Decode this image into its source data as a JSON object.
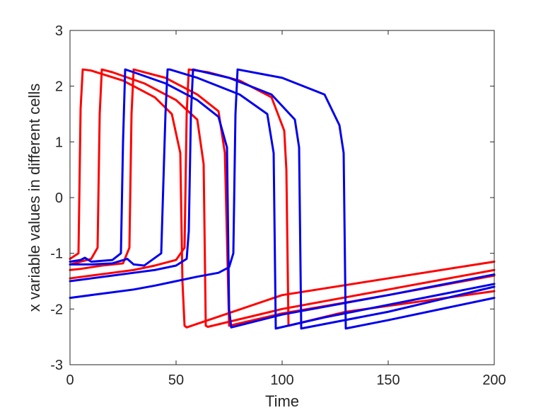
{
  "chart_data": {
    "type": "line",
    "xlabel": "Time",
    "ylabel": "x variable values in different cells",
    "xlim": [
      0,
      200
    ],
    "ylim": [
      -3,
      3
    ],
    "xticks": [
      0,
      50,
      100,
      150,
      200
    ],
    "yticks": [
      -3,
      -2,
      -1,
      0,
      1,
      2,
      3
    ],
    "grid": false,
    "colors": {
      "red": "#ff0000",
      "blue": "#0000ee",
      "axis": "#262626"
    },
    "series": [
      {
        "color": "red",
        "x": [
          0,
          4,
          5,
          6,
          10,
          25,
          40,
          48,
          52,
          53,
          54,
          55,
          100,
          150,
          200
        ],
        "y": [
          -1.1,
          -1.0,
          1.6,
          2.3,
          2.28,
          2.1,
          1.8,
          1.5,
          0.8,
          -1.5,
          -2.3,
          -2.33,
          -1.75,
          -1.45,
          -1.15
        ]
      },
      {
        "color": "red",
        "x": [
          0,
          10,
          13,
          14,
          15,
          20,
          35,
          50,
          60,
          63,
          64,
          65,
          100,
          150,
          200
        ],
        "y": [
          -1.2,
          -1.1,
          -0.9,
          1.5,
          2.3,
          2.25,
          2.05,
          1.75,
          1.4,
          0.6,
          -2.3,
          -2.32,
          -2.0,
          -1.65,
          -1.3
        ]
      },
      {
        "color": "red",
        "x": [
          0,
          5,
          15,
          25,
          28,
          29,
          30,
          45,
          60,
          70,
          73,
          75,
          100,
          150,
          200
        ],
        "y": [
          -1.3,
          -1.28,
          -1.22,
          -1.18,
          -0.9,
          1.5,
          2.3,
          2.15,
          1.85,
          1.55,
          0.8,
          -2.3,
          -2.08,
          -1.75,
          -1.4
        ]
      },
      {
        "color": "red",
        "x": [
          0,
          10,
          20,
          30,
          40,
          50,
          54,
          55,
          56,
          65,
          80,
          95,
          101,
          102,
          103,
          130,
          200
        ],
        "y": [
          -1.45,
          -1.4,
          -1.35,
          -1.3,
          -1.22,
          -1.12,
          -0.9,
          1.5,
          2.3,
          2.25,
          2.1,
          1.8,
          1.2,
          0.5,
          -2.3,
          -2.05,
          -1.68
        ]
      },
      {
        "color": "blue",
        "x": [
          0,
          5,
          7,
          10,
          20,
          24,
          25,
          26,
          30,
          45,
          60,
          70,
          74,
          75,
          76,
          100,
          150,
          200
        ],
        "y": [
          -1.15,
          -1.12,
          -1.08,
          -1.15,
          -1.12,
          -1.0,
          1.0,
          2.3,
          2.25,
          2.05,
          1.75,
          1.45,
          0.9,
          -2.0,
          -2.33,
          -2.1,
          -1.75,
          -1.38
        ]
      },
      {
        "color": "blue",
        "x": [
          0,
          10,
          20,
          27,
          30,
          35,
          43,
          45,
          46,
          47,
          60,
          80,
          93,
          96,
          97,
          120,
          200
        ],
        "y": [
          -1.2,
          -1.2,
          -1.18,
          -1.1,
          -1.2,
          -1.22,
          -1.0,
          1.5,
          2.3,
          2.3,
          2.15,
          1.85,
          1.5,
          0.8,
          -2.35,
          -2.15,
          -1.55
        ]
      },
      {
        "color": "blue",
        "x": [
          0,
          10,
          20,
          30,
          40,
          50,
          55,
          56,
          57,
          58,
          75,
          95,
          106,
          108,
          109,
          150,
          200
        ],
        "y": [
          -1.5,
          -1.45,
          -1.4,
          -1.35,
          -1.3,
          -1.22,
          -1.1,
          -0.6,
          1.5,
          2.3,
          2.15,
          1.85,
          1.4,
          0.9,
          -2.35,
          -2.05,
          -1.6
        ]
      },
      {
        "color": "blue",
        "x": [
          0,
          10,
          20,
          30,
          40,
          50,
          60,
          70,
          75,
          77,
          78,
          79,
          100,
          120,
          127,
          129,
          130,
          150,
          200
        ],
        "y": [
          -1.8,
          -1.75,
          -1.7,
          -1.65,
          -1.58,
          -1.5,
          -1.42,
          -1.35,
          -1.25,
          -1.0,
          1.5,
          2.3,
          2.15,
          1.85,
          1.3,
          0.8,
          -2.35,
          -2.2,
          -1.8
        ]
      }
    ]
  }
}
